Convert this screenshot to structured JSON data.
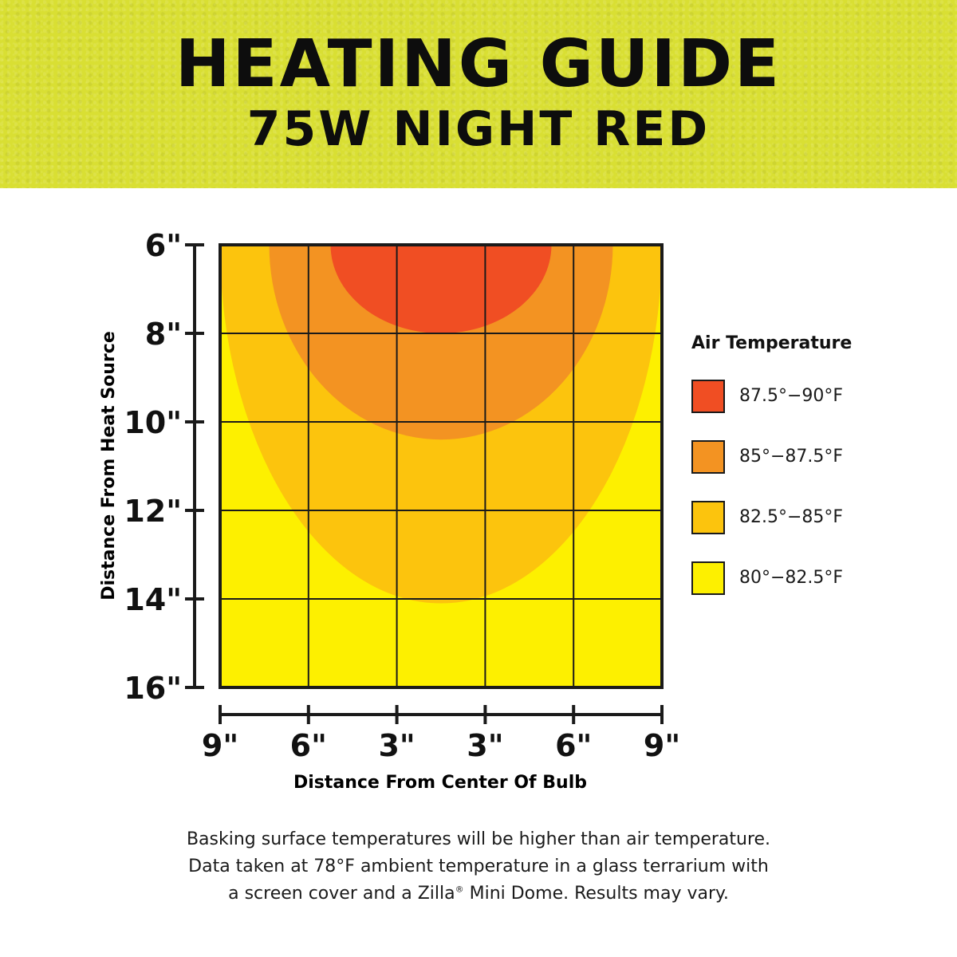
{
  "header": {
    "title": "HEATING GUIDE",
    "subtitle": "75W NIGHT RED",
    "background_color": "#d9df33"
  },
  "chart_data": {
    "type": "heatmap",
    "ylabel": "Distance From Heat Source",
    "xlabel": "Distance From Center Of Bulb",
    "y_ticks": [
      "6\"",
      "8\"",
      "10\"",
      "12\"",
      "14\"",
      "16\""
    ],
    "x_ticks": [
      "9\"",
      "6\"",
      "3\"",
      "3\"",
      "6\"",
      "9\""
    ],
    "y_range_in": [
      6,
      16
    ],
    "x_range_in": [
      -9,
      9
    ],
    "grid": true,
    "legend_title": "Air Temperature",
    "legend_position": "right",
    "zones": [
      {
        "label": "87.5°−90°F",
        "color": "#f04e23",
        "max_depth_in": 8.0,
        "half_width_in": 4.5
      },
      {
        "label": "85°−87.5°F",
        "color": "#f39322",
        "max_depth_in": 10.4,
        "half_width_in": 7.0
      },
      {
        "label": "82.5°−85°F",
        "color": "#fcc40d",
        "max_depth_in": 14.1,
        "half_width_in": 9.0
      },
      {
        "label": "80°−82.5°F",
        "color": "#fdf000",
        "max_depth_in": 16.0,
        "half_width_in": 9.0
      }
    ]
  },
  "footnote": {
    "line1": "Basking surface temperatures will be higher than air temperature.",
    "line2": "Data taken at 78°F ambient temperature in a glass terrarium with",
    "line3a": "a screen cover and a Zilla",
    "reg": "®",
    "line3b": " Mini Dome. Results may vary."
  }
}
